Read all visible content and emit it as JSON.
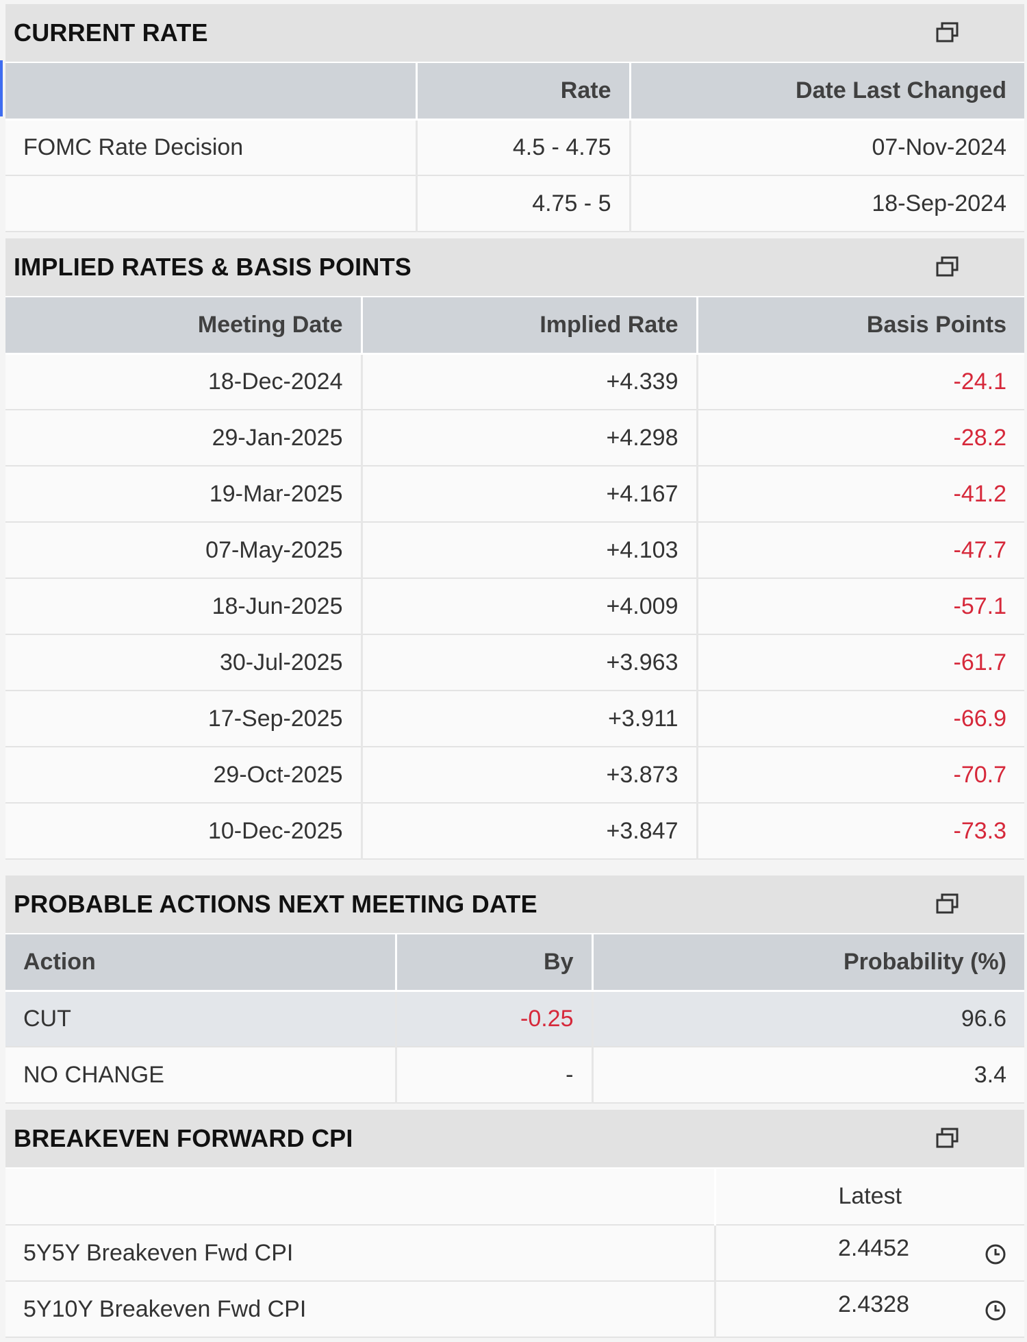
{
  "current_rate": {
    "title": "CURRENT RATE",
    "popout_icon": "popout-window-icon",
    "columns": [
      "",
      "Rate",
      "Date Last Changed"
    ],
    "rows": [
      {
        "label": "FOMC Rate Decision",
        "rate": "4.5 - 4.75",
        "date": "07-Nov-2024"
      },
      {
        "label": "",
        "rate": "4.75 - 5",
        "date": "18-Sep-2024"
      }
    ]
  },
  "implied_rates": {
    "title": "IMPLIED RATES & BASIS POINTS",
    "popout_icon": "popout-window-icon",
    "columns": [
      "Meeting Date",
      "Implied Rate",
      "Basis Points"
    ],
    "rows": [
      {
        "date": "18-Dec-2024",
        "rate": "+4.339",
        "bp": "-24.1"
      },
      {
        "date": "29-Jan-2025",
        "rate": "+4.298",
        "bp": "-28.2"
      },
      {
        "date": "19-Mar-2025",
        "rate": "+4.167",
        "bp": "-41.2"
      },
      {
        "date": "07-May-2025",
        "rate": "+4.103",
        "bp": "-47.7"
      },
      {
        "date": "18-Jun-2025",
        "rate": "+4.009",
        "bp": "-57.1"
      },
      {
        "date": "30-Jul-2025",
        "rate": "+3.963",
        "bp": "-61.7"
      },
      {
        "date": "17-Sep-2025",
        "rate": "+3.911",
        "bp": "-66.9"
      },
      {
        "date": "29-Oct-2025",
        "rate": "+3.873",
        "bp": "-70.7"
      },
      {
        "date": "10-Dec-2025",
        "rate": "+3.847",
        "bp": "-73.3"
      }
    ],
    "negative_color": "#d6283a"
  },
  "probable_actions": {
    "title": "PROBABLE ACTIONS NEXT MEETING DATE",
    "popout_icon": "popout-window-icon",
    "columns": [
      "Action",
      "By",
      "Probability (%)"
    ],
    "rows": [
      {
        "action": "CUT",
        "by": "-0.25",
        "prob": "96.6"
      },
      {
        "action": "NO CHANGE",
        "by": "-",
        "prob": "3.4"
      }
    ]
  },
  "breakeven": {
    "title": "BREAKEVEN FORWARD CPI",
    "popout_icon": "popout-window-icon",
    "columns": [
      "",
      "Latest"
    ],
    "rows": [
      {
        "label": "5Y5Y Breakeven Fwd CPI",
        "latest": "2.4452",
        "icon": "clock-icon"
      },
      {
        "label": "5Y10Y Breakeven Fwd CPI",
        "latest": "2.4328",
        "icon": "clock-icon"
      }
    ]
  }
}
